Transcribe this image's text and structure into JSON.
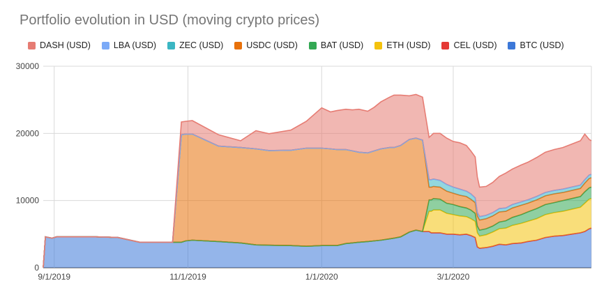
{
  "chart_data": {
    "type": "area",
    "stacked": true,
    "title": "Portfolio evolution in USD (moving crypto prices)",
    "xlabel": "",
    "ylabel": "",
    "xlim": [
      "2019-08-27",
      "2020-05-03"
    ],
    "ylim": [
      0,
      30000
    ],
    "yticks": [
      0,
      10000,
      20000,
      30000
    ],
    "xticks": [
      {
        "date": "2019-09-01",
        "label": "9/1/2019"
      },
      {
        "date": "2019-11-01",
        "label": "11/1/2019"
      },
      {
        "date": "2020-01-01",
        "label": "1/1/2020"
      },
      {
        "date": "2020-03-01",
        "label": "3/1/2020"
      }
    ],
    "grid": true,
    "legend_position": "top",
    "legend_order": [
      "DASH (USD)",
      "LBA (USD)",
      "ZEC (USD)",
      "USDC (USD)",
      "BAT (USD)",
      "ETH (USD)",
      "CEL (USD)",
      "BTC (USD)"
    ],
    "x": [
      "2019-08-27",
      "2019-08-28",
      "2019-08-31",
      "2019-09-02",
      "2019-09-20",
      "2019-09-30",
      "2019-10-10",
      "2019-10-25",
      "2019-10-29",
      "2019-10-31",
      "2019-11-03",
      "2019-11-15",
      "2019-11-25",
      "2019-12-02",
      "2019-12-08",
      "2019-12-18",
      "2019-12-25",
      "2020-01-01",
      "2020-01-05",
      "2020-01-08",
      "2020-01-12",
      "2020-01-15",
      "2020-01-18",
      "2020-01-22",
      "2020-01-25",
      "2020-01-28",
      "2020-02-01",
      "2020-02-03",
      "2020-02-06",
      "2020-02-10",
      "2020-02-13",
      "2020-02-16",
      "2020-02-19",
      "2020-02-20",
      "2020-02-21",
      "2020-02-24",
      "2020-02-27",
      "2020-03-01",
      "2020-03-04",
      "2020-03-07",
      "2020-03-09",
      "2020-03-11",
      "2020-03-12",
      "2020-03-13",
      "2020-03-16",
      "2020-03-19",
      "2020-03-22",
      "2020-03-25",
      "2020-03-28",
      "2020-04-01",
      "2020-04-04",
      "2020-04-08",
      "2020-04-12",
      "2020-04-16",
      "2020-04-20",
      "2020-04-24",
      "2020-04-28",
      "2020-04-30",
      "2020-05-02",
      "2020-05-03"
    ],
    "series": [
      {
        "name": "BTC (USD)",
        "color": "#3c78d8",
        "values": [
          0,
          4600,
          4400,
          4600,
          4600,
          4500,
          3800,
          3800,
          3800,
          4000,
          4100,
          3900,
          3700,
          3400,
          3350,
          3300,
          3200,
          3300,
          3300,
          3300,
          3600,
          3700,
          3800,
          3900,
          4000,
          4100,
          4300,
          4400,
          4600,
          5300,
          5600,
          5400,
          5400,
          5200,
          5200,
          5200,
          5000,
          5000,
          4900,
          5000,
          4800,
          4500,
          3100,
          2900,
          3000,
          3200,
          3500,
          3400,
          3600,
          3700,
          3900,
          4100,
          4500,
          4700,
          4800,
          5000,
          5200,
          5400,
          5800,
          5900
        ]
      },
      {
        "name": "CEL (USD)",
        "color": "#e53935",
        "values": [
          0,
          0,
          0,
          0,
          0,
          0,
          0,
          0,
          0,
          0,
          0,
          0,
          0,
          0,
          0,
          0,
          0,
          0,
          0,
          0,
          0,
          0,
          0,
          0,
          0,
          0,
          0,
          0,
          0,
          0,
          0,
          0,
          0,
          0,
          0,
          0,
          0,
          0,
          0,
          0,
          0,
          0,
          0,
          0,
          0,
          0,
          0,
          0,
          0,
          0,
          0,
          0,
          0,
          0,
          0,
          0,
          0,
          0,
          0,
          0
        ]
      },
      {
        "name": "ETH (USD)",
        "color": "#f4c20d",
        "values": [
          0,
          0,
          0,
          0,
          0,
          0,
          0,
          0,
          0,
          0,
          0,
          0,
          0,
          0,
          0,
          0,
          0,
          0,
          0,
          0,
          0,
          0,
          0,
          0,
          0,
          0,
          0,
          0,
          0,
          0,
          0,
          0,
          3000,
          3200,
          3400,
          3400,
          3100,
          2900,
          2800,
          2600,
          2500,
          2400,
          2100,
          1800,
          1900,
          2100,
          2300,
          2500,
          2700,
          2900,
          3000,
          3200,
          3400,
          3500,
          3600,
          3700,
          3800,
          4200,
          4400,
          4400
        ]
      },
      {
        "name": "BAT (USD)",
        "color": "#33a853",
        "values": [
          0,
          0,
          0,
          0,
          0,
          0,
          0,
          0,
          0,
          0,
          0,
          0,
          0,
          0,
          0,
          0,
          0,
          0,
          0,
          0,
          0,
          0,
          0,
          0,
          0,
          0,
          0,
          0,
          0,
          0,
          0,
          0,
          1700,
          1700,
          1700,
          1600,
          1500,
          1500,
          1400,
          1300,
          1300,
          1200,
          1000,
          900,
          900,
          900,
          1000,
          1100,
          1200,
          1300,
          1400,
          1500,
          1500,
          1500,
          1600,
          1600,
          1600,
          1700,
          1700,
          1700
        ]
      },
      {
        "name": "USDC (USD)",
        "color": "#e8710a",
        "values": [
          0,
          0,
          0,
          0,
          0,
          0,
          0,
          0,
          16000,
          15900,
          15800,
          14200,
          14200,
          14300,
          14100,
          14200,
          14600,
          14500,
          14400,
          14300,
          14000,
          13700,
          13400,
          13200,
          13400,
          13600,
          13600,
          13500,
          13600,
          13800,
          13700,
          13600,
          1900,
          1900,
          1800,
          1800,
          1800,
          1700,
          1700,
          1700,
          1600,
          1600,
          1500,
          1500,
          1500,
          1500,
          1500,
          1400,
          1400,
          1400,
          1300,
          1300,
          1300,
          1300,
          1200,
          1200,
          1200,
          1300,
          1400,
          1400
        ]
      },
      {
        "name": "ZEC (USD)",
        "color": "#3bb6c3",
        "values": [
          0,
          0,
          0,
          0,
          0,
          0,
          0,
          0,
          0,
          0,
          0,
          0,
          0,
          0,
          0,
          0,
          0,
          0,
          0,
          0,
          0,
          0,
          0,
          0,
          0,
          0,
          0,
          0,
          0,
          0,
          0,
          0,
          1100,
          1100,
          1100,
          1000,
          1000,
          900,
          900,
          800,
          800,
          700,
          500,
          500,
          500,
          500,
          500,
          500,
          500,
          500,
          500,
          500,
          500,
          500,
          500,
          500,
          500,
          500,
          500,
          500
        ]
      },
      {
        "name": "LBA (USD)",
        "color": "#7baaf7",
        "values": [
          0,
          0,
          0,
          0,
          0,
          0,
          0,
          0,
          0,
          0,
          0,
          0,
          0,
          0,
          0,
          0,
          0,
          0,
          0,
          0,
          0,
          0,
          0,
          0,
          0,
          0,
          0,
          0,
          0,
          0,
          0,
          0,
          0,
          0,
          0,
          0,
          0,
          0,
          0,
          0,
          0,
          0,
          0,
          0,
          0,
          0,
          0,
          0,
          0,
          0,
          0,
          0,
          0,
          0,
          0,
          0,
          0,
          0,
          0,
          0
        ]
      },
      {
        "name": "DASH (USD)",
        "color": "#e67c73",
        "values": [
          0,
          0,
          0,
          0,
          0,
          0,
          0,
          0,
          1900,
          1900,
          2000,
          1700,
          1000,
          2700,
          2500,
          3000,
          4000,
          6000,
          5500,
          5800,
          6000,
          6100,
          6400,
          6200,
          6500,
          7000,
          7500,
          7800,
          7500,
          6500,
          6500,
          6400,
          6300,
          6600,
          6800,
          7000,
          6900,
          6800,
          6900,
          6800,
          6400,
          6100,
          5300,
          4400,
          4300,
          4500,
          4800,
          5200,
          5300,
          5500,
          5600,
          5800,
          6000,
          6100,
          6200,
          6400,
          6600,
          6800,
          5300,
          5000
        ]
      }
    ]
  }
}
